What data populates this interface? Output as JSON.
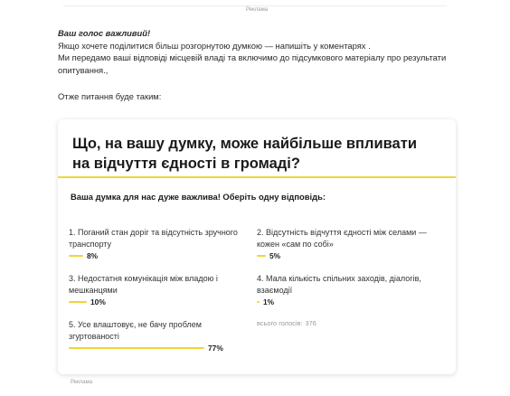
{
  "top_ad_label": "Реклама",
  "article": {
    "title": "Ваш голос важливий!",
    "lines": [
      "Якщо хочете поділитися більш розгорнутою думкою — напишіть у коментарях .",
      "Ми передамо ваші відповіді місцевій владі та включимо до підсумкового матеріалу про результати опитування.,"
    ],
    "intro": "Отже питання буде таким:"
  },
  "poll": {
    "question": "Що, на вашу думку, може найбільше впливати на відчуття єдності в громаді?",
    "prompt": "Ваша думка для нас дуже важлива! Оберіть одну відповідь:",
    "options": [
      {
        "label": "1. Поганий стан доріг та відсутність зручного транспорту",
        "percent_label": "8%",
        "percent": 8
      },
      {
        "label": "2. Відсутність відчуття єдності між селами — кожен «сам по собі»",
        "percent_label": "5%",
        "percent": 5
      },
      {
        "label": "3. Недостатня комунікація між владою і мешканцями",
        "percent_label": "10%",
        "percent": 10
      },
      {
        "label": "4. Мала кількість спільних заходів, діалогів, взаємодії",
        "percent_label": "1%",
        "percent": 1
      },
      {
        "label": "5. Усе влаштовує, не бачу проблем згуртованості",
        "percent_label": "77%",
        "percent": 77
      }
    ],
    "total_label": "всього голосів:",
    "total_votes": "376",
    "bar_color": "#f2d43a"
  },
  "bottom_ad_label": "Реклама"
}
